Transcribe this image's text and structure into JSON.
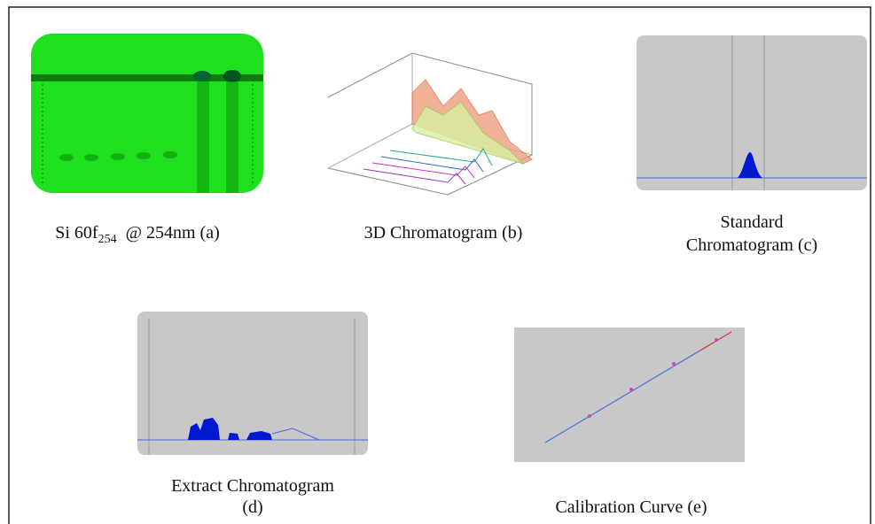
{
  "figure": {
    "captions": {
      "a": {
        "main": "Si 60f",
        "sub": "254",
        "rest": "  @ 254nm (a)"
      },
      "b": "3D Chromatogram (b)",
      "c": {
        "line1": "Standard",
        "line2": "Chromatogram (c)"
      },
      "d": {
        "line1": "Extract Chromatogram",
        "line2": "(d)"
      },
      "e": "Calibration Curve (e)"
    }
  }
}
